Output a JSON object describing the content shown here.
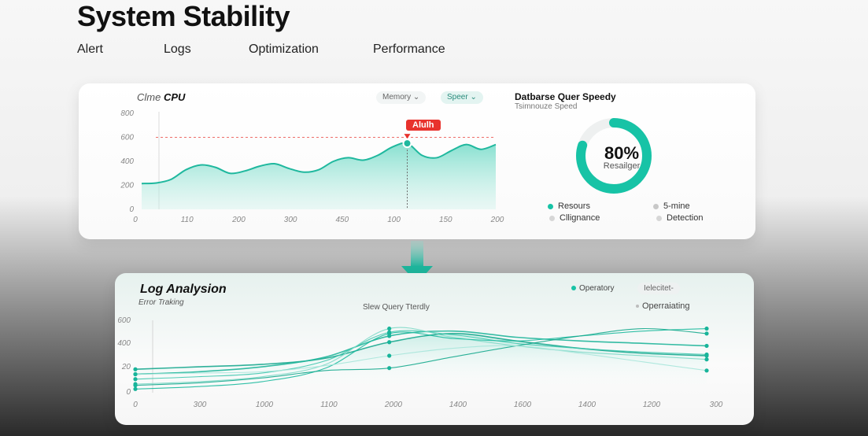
{
  "header": {
    "title": "System Stability",
    "tabs": [
      "Alert",
      "Logs",
      "Optimization",
      "Performance"
    ]
  },
  "cpu_panel": {
    "title_prefix": "Clme",
    "title_main": "CPU",
    "pill_memory": "Memory ⌄",
    "pill_speed": "Speer ⌄",
    "alert_label": "Alulh",
    "y_ticks": [
      "800",
      "600",
      "400",
      "200",
      "0"
    ],
    "x_ticks": [
      "0",
      "110",
      "200",
      "300",
      "450",
      "100",
      "150",
      "200"
    ]
  },
  "db_panel": {
    "title": "Datbarse Quer Speedy",
    "subtitle": "Tsimnouze Speed",
    "percent_value": 0.8,
    "percent_text": "80%",
    "center_label": "Resailger",
    "legend": [
      {
        "label": "Resours",
        "color": "#17c3a6"
      },
      {
        "label": "5-mine",
        "color": "#c8c8c8"
      },
      {
        "label": "Cllignance",
        "color": "#d6d6d6"
      },
      {
        "label": "Detection",
        "color": "#d6d6d6"
      }
    ]
  },
  "log_panel": {
    "title": "Log Analysion",
    "subtitle": "Error Traking",
    "chart_title": "Slew Query Tterdly",
    "legend_operatory": "Operatory",
    "pill_label": "Ielecitet-",
    "legend_operrating": "Operraiating",
    "y_ticks": [
      "600",
      "400",
      "20",
      "0"
    ],
    "x_ticks": [
      "0",
      "300",
      "1000",
      "1100",
      "2000",
      "1400",
      "1600",
      "1400",
      "1200",
      "300"
    ]
  },
  "colors": {
    "accent": "#17c3a6",
    "alert": "#e8322d"
  },
  "chart_data": [
    {
      "type": "area",
      "title": "CPU",
      "y_ticks": [
        0,
        200,
        400,
        600,
        800
      ],
      "ylim": [
        0,
        800
      ],
      "alert_threshold": 600,
      "values": [
        215,
        220,
        250,
        330,
        370,
        350,
        300,
        320,
        360,
        380,
        340,
        310,
        330,
        400,
        430,
        410,
        450,
        520,
        550,
        450,
        430,
        490,
        540,
        500,
        540
      ]
    },
    {
      "type": "pie",
      "title": "Datbarse Quer Speedy",
      "values": [
        80,
        20
      ],
      "categories": [
        "Resailger",
        ""
      ]
    },
    {
      "type": "line",
      "title": "Slew Query Tterdly",
      "ylim": [
        0,
        600
      ],
      "series": [
        {
          "values": [
            190,
            210,
            230,
            280,
            410,
            480,
            420,
            360,
            320,
            300
          ]
        },
        {
          "values": [
            150,
            170,
            210,
            290,
            460,
            500,
            450,
            420,
            400,
            380
          ]
        },
        {
          "values": [
            110,
            130,
            160,
            260,
            490,
            470,
            400,
            360,
            330,
            310
          ]
        },
        {
          "values": [
            70,
            90,
            130,
            230,
            520,
            450,
            380,
            330,
            300,
            270
          ]
        },
        {
          "values": [
            30,
            50,
            90,
            200,
            480,
            440,
            420,
            460,
            500,
            520
          ]
        },
        {
          "values": [
            60,
            80,
            120,
            180,
            200,
            290,
            380,
            460,
            520,
            480
          ]
        },
        {
          "values": [
            150,
            160,
            170,
            220,
            300,
            360,
            380,
            320,
            250,
            180
          ]
        }
      ]
    }
  ]
}
